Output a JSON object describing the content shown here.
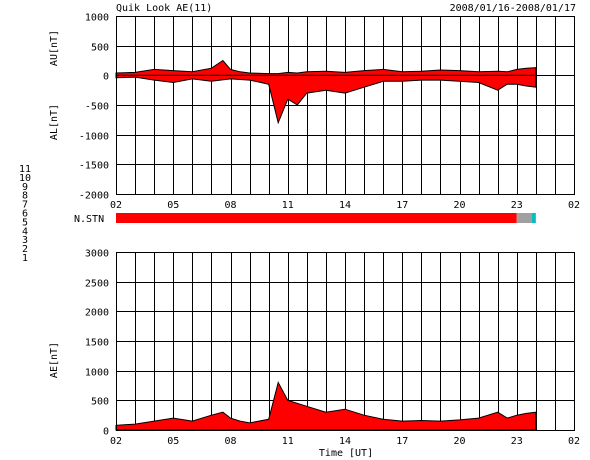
{
  "header": {
    "title": "Quik Look AE(11)",
    "date_range": "2008/01/16-2008/01/17"
  },
  "footer": {
    "xlabel": "Time [UT]"
  },
  "colors": {
    "fill_main": "#ff0000",
    "fill_late": "#b0b0b0",
    "outline": "#000000",
    "grid": "#000000"
  },
  "chart_data": [
    {
      "type": "area",
      "panel": "AU/AL",
      "ylabel_upper": "AU[nT]",
      "ylabel_lower": "AL[nT]",
      "ylim": [
        -2000,
        1000
      ],
      "yticks": [
        1000,
        500,
        0,
        -500,
        -1000,
        -1500,
        -2000
      ],
      "xticks": [
        "02",
        "05",
        "08",
        "11",
        "14",
        "17",
        "20",
        "23",
        "02"
      ],
      "xlim_hours": [
        2,
        26
      ],
      "series": [
        {
          "name": "AU",
          "x": [
            2,
            3,
            4,
            5,
            6,
            7,
            7.6,
            8,
            8.5,
            9,
            10,
            10.5,
            11,
            11.5,
            12,
            13,
            14,
            15,
            16,
            17,
            18,
            19,
            20,
            21,
            22,
            22.5,
            23,
            23.5,
            24
          ],
          "values": [
            40,
            50,
            100,
            80,
            60,
            120,
            250,
            100,
            60,
            40,
            30,
            30,
            50,
            40,
            60,
            70,
            50,
            80,
            100,
            60,
            70,
            90,
            80,
            60,
            70,
            60,
            100,
            120,
            130
          ]
        },
        {
          "name": "AL",
          "x": [
            2,
            3,
            4,
            5,
            6,
            7,
            8,
            9,
            10,
            10.5,
            11,
            11.5,
            12,
            13,
            14,
            15,
            16,
            17,
            18,
            19,
            20,
            21,
            22,
            22.5,
            23,
            23.5,
            24
          ],
          "values": [
            -40,
            -30,
            -80,
            -120,
            -60,
            -100,
            -60,
            -80,
            -150,
            -800,
            -400,
            -500,
            -300,
            -250,
            -300,
            -200,
            -100,
            -100,
            -80,
            -80,
            -100,
            -120,
            -250,
            -150,
            -150,
            -180,
            -200
          ]
        }
      ]
    },
    {
      "type": "bar",
      "panel": "N.STN",
      "label": "N.STN",
      "legend": [
        "11",
        "10",
        "9",
        "8",
        "7",
        "6",
        "5",
        "4",
        "3",
        "2",
        "1"
      ],
      "legend_colors": [
        "#00e0e0",
        "#ff00ff",
        "#4040ff",
        "#d0d000",
        "#00c000",
        "#ff0000",
        "#a0a0a0",
        "#a0a0a0",
        "#00c0c0",
        "#c000c0",
        "#2020ff"
      ],
      "segments": [
        {
          "from": 2,
          "to": 23,
          "stations": 6
        },
        {
          "from": 23,
          "to": 23.8,
          "stations": 5
        },
        {
          "from": 23.8,
          "to": 24.0,
          "stations": 3
        }
      ]
    },
    {
      "type": "area",
      "panel": "AE",
      "ylabel": "AE[nT]",
      "ylim": [
        0,
        3000
      ],
      "yticks": [
        3000,
        2500,
        2000,
        1500,
        1000,
        500,
        0
      ],
      "xticks": [
        "02",
        "05",
        "08",
        "11",
        "14",
        "17",
        "20",
        "23",
        "02"
      ],
      "xlim_hours": [
        2,
        26
      ],
      "series": [
        {
          "name": "AE",
          "x": [
            2,
            3,
            4,
            5,
            6,
            7,
            7.6,
            8,
            8.5,
            9,
            10,
            10.5,
            11,
            11.5,
            12,
            13,
            14,
            15,
            16,
            17,
            18,
            19,
            20,
            21,
            22,
            22.5,
            23,
            23.5,
            24
          ],
          "values": [
            80,
            100,
            150,
            200,
            150,
            250,
            300,
            200,
            150,
            120,
            180,
            800,
            500,
            450,
            400,
            300,
            350,
            250,
            180,
            150,
            160,
            150,
            170,
            200,
            300,
            200,
            250,
            280,
            300
          ]
        }
      ]
    }
  ]
}
